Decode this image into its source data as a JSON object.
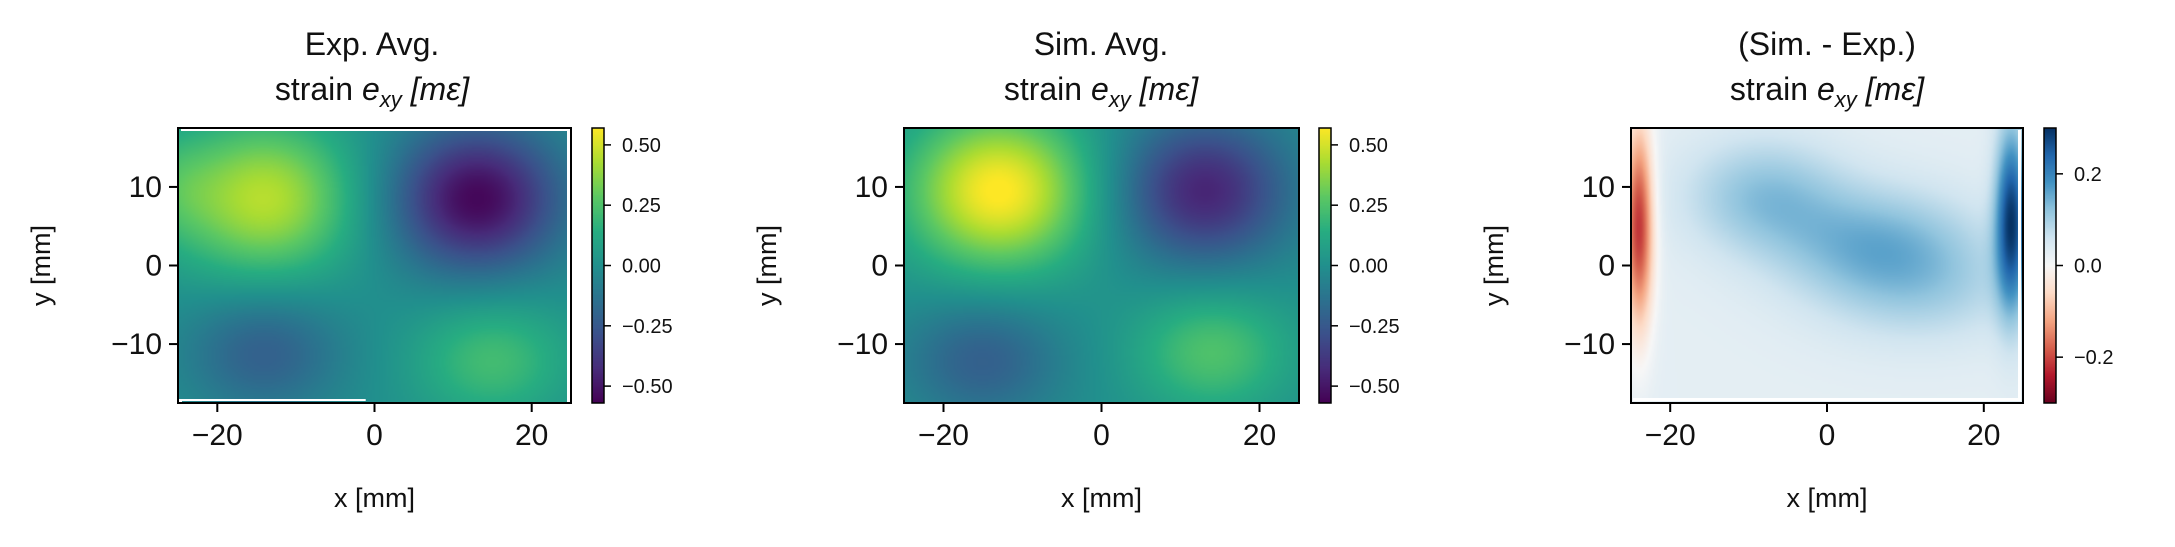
{
  "figure": {
    "colors": {
      "text": "#111111",
      "frame": "#000000",
      "background": "#ffffff"
    }
  },
  "chart_data": [
    {
      "type": "heatmap",
      "title_line1": "Exp. Avg.",
      "title_line2_prefix": "strain ",
      "title_symbol": "e",
      "title_subscript": "xy",
      "title_unit": "[mε]",
      "xlabel": "x [mm]",
      "ylabel": "y [mm]",
      "xlim": [
        -25,
        25
      ],
      "ylim": [
        -17.5,
        17.5
      ],
      "xticks": [
        -20,
        0,
        20
      ],
      "xtick_labels": [
        "−20",
        "0",
        "20"
      ],
      "yticks": [
        -10,
        0,
        10
      ],
      "ytick_labels": [
        "−10",
        "0",
        "10"
      ],
      "colormap": "viridis",
      "vmin": -0.57,
      "vmax": 0.57,
      "colorbar_ticks": [
        0.5,
        0.25,
        0.0,
        -0.25,
        -0.5
      ],
      "colorbar_tick_labels": [
        "0.50",
        "0.25",
        "0.00",
        "−0.25",
        "−0.50"
      ],
      "field": {
        "blobs": [
          {
            "x": -14,
            "y": 8.5,
            "amp": 0.45,
            "sx": 8,
            "sy": 7
          },
          {
            "x": 13,
            "y": 8.5,
            "amp": -0.55,
            "sx": 7.5,
            "sy": 6.5
          },
          {
            "x": -14,
            "y": -11,
            "amp": -0.22,
            "sx": 7,
            "sy": 5.5
          },
          {
            "x": 15,
            "y": -12,
            "amp": 0.22,
            "sx": 7,
            "sy": 5.5
          },
          {
            "x": -26,
            "y": 10,
            "amp": 0.12,
            "sx": 4,
            "sy": 5
          }
        ]
      }
    },
    {
      "type": "heatmap",
      "title_line1": "Sim. Avg.",
      "title_line2_prefix": "strain ",
      "title_symbol": "e",
      "title_subscript": "xy",
      "title_unit": "[mε]",
      "xlabel": "x [mm]",
      "ylabel": "y [mm]",
      "xlim": [
        -25,
        25
      ],
      "ylim": [
        -17.5,
        17.5
      ],
      "xticks": [
        -20,
        0,
        20
      ],
      "xtick_labels": [
        "−20",
        "0",
        "20"
      ],
      "yticks": [
        -10,
        0,
        10
      ],
      "ytick_labels": [
        "−10",
        "0",
        "10"
      ],
      "colormap": "viridis",
      "vmin": -0.57,
      "vmax": 0.57,
      "colorbar_ticks": [
        0.5,
        0.25,
        0.0,
        -0.25,
        -0.5
      ],
      "colorbar_tick_labels": [
        "0.50",
        "0.25",
        "0.00",
        "−0.25",
        "−0.50"
      ],
      "field": {
        "blobs": [
          {
            "x": -13,
            "y": 9.5,
            "amp": 0.58,
            "sx": 8,
            "sy": 7
          },
          {
            "x": 13,
            "y": 9.5,
            "amp": -0.45,
            "sx": 7.5,
            "sy": 6.5
          },
          {
            "x": -15,
            "y": -12,
            "amp": -0.22,
            "sx": 7,
            "sy": 5.5
          },
          {
            "x": 14,
            "y": -11,
            "amp": 0.25,
            "sx": 7,
            "sy": 5.5
          }
        ]
      }
    },
    {
      "type": "heatmap",
      "title_line1": "(Sim. - Exp.)",
      "title_line2_prefix": "strain ",
      "title_symbol": "e",
      "title_subscript": "xy",
      "title_unit": "[mε]",
      "xlabel": "x [mm]",
      "ylabel": "y [mm]",
      "xlim": [
        -25,
        25
      ],
      "ylim": [
        -17.5,
        17.5
      ],
      "xticks": [
        -20,
        0,
        20
      ],
      "xtick_labels": [
        "−20",
        "0",
        "20"
      ],
      "yticks": [
        -10,
        0,
        10
      ],
      "ytick_labels": [
        "−10",
        "0",
        "10"
      ],
      "colormap": "RdBu",
      "vmin": -0.3,
      "vmax": 0.3,
      "colorbar_ticks": [
        0.2,
        0.0,
        -0.2
      ],
      "colorbar_tick_labels": [
        "0.2",
        "0.0",
        "−0.2"
      ],
      "field": {
        "blobs": [
          {
            "x": -8,
            "y": 9,
            "amp": 0.09,
            "sx": 7,
            "sy": 5
          },
          {
            "x": 6,
            "y": 3,
            "amp": 0.1,
            "sx": 9,
            "sy": 5
          },
          {
            "x": 12,
            "y": -3,
            "amp": 0.06,
            "sx": 9,
            "sy": 5
          },
          {
            "x": 23.5,
            "y": 6,
            "amp": 0.25,
            "sx": 1.4,
            "sy": 8
          },
          {
            "x": -24,
            "y": 5,
            "amp": -0.25,
            "sx": 1.3,
            "sy": 9
          }
        ],
        "base": 0.03
      }
    }
  ]
}
